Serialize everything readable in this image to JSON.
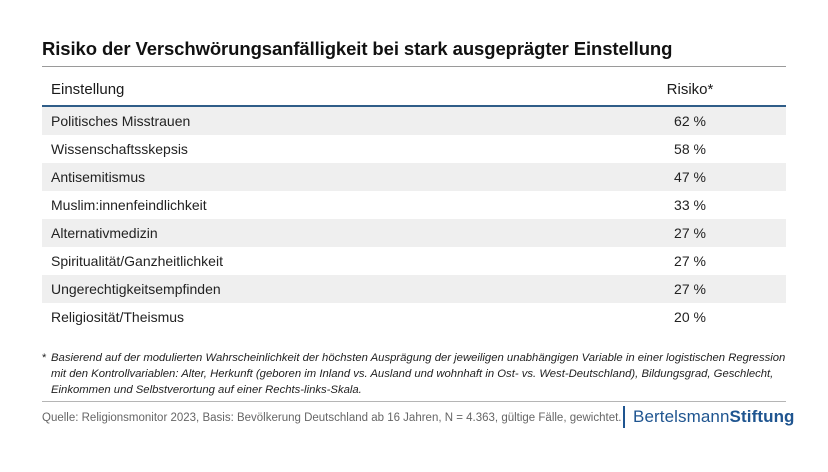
{
  "title": "Risiko der Verschwörungsanfälligkeit bei stark ausgeprägter Einstellung",
  "table": {
    "headers": {
      "col1": "Einstellung",
      "col2": "Risiko*"
    },
    "rows": [
      {
        "label": "Politisches Misstrauen",
        "value": "62 %"
      },
      {
        "label": "Wissenschaftsskepsis",
        "value": "58 %"
      },
      {
        "label": "Antisemitismus",
        "value": "47 %"
      },
      {
        "label": "Muslim:innenfeindlichkeit",
        "value": "33 %"
      },
      {
        "label": "Alternativmedizin",
        "value": "27 %"
      },
      {
        "label": "Spiritualität/Ganzheitlichkeit",
        "value": "27 %"
      },
      {
        "label": "Ungerechtigkeitsempfinden",
        "value": "27 %"
      },
      {
        "label": "Religiosität/Theismus",
        "value": "20 %"
      }
    ]
  },
  "footnote": {
    "marker": "*",
    "text": "Basierend auf der modulierten Wahrscheinlichkeit der höchsten Ausprägung der jeweiligen unabhängigen Variable in einer logistischen Regression mit den Kontrollvariablen: Alter, Herkunft (geboren im Inland vs. Ausland und wohnhaft in Ost- vs. West-Deutschland), Bildungsgrad, Geschlecht, Einkommen und Selbstverortung auf einer Rechts-links-Skala."
  },
  "source": "Quelle: Religionsmonitor 2023, Basis: Bevölkerung Deutschland ab 16 Jahren, N = 4.363, gültige Fälle, gewichtet.",
  "logo": {
    "part1": "Bertelsmann",
    "part2": "Stiftung",
    "color": "#1f5590"
  },
  "colors": {
    "header_rule": "#2f5d88",
    "row_stripe": "#efefef"
  }
}
